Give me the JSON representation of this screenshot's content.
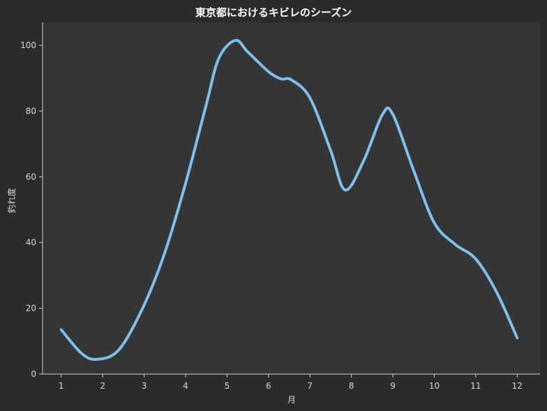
{
  "chart_data": {
    "type": "line",
    "title": "東京都におけるキビレのシーズン",
    "xlabel": "月",
    "ylabel": "釣れ度",
    "x": [
      1,
      2,
      3,
      4,
      5,
      6,
      7,
      8,
      9,
      10,
      11,
      12
    ],
    "x_tick_labels": [
      "1",
      "2",
      "3",
      "4",
      "5",
      "6",
      "7",
      "8",
      "9",
      "10",
      "11",
      "12"
    ],
    "y_ticks": [
      0,
      20,
      40,
      60,
      80,
      100
    ],
    "y_tick_labels": [
      "0",
      "20",
      "40",
      "60",
      "80",
      "100"
    ],
    "xlim": [
      0.55,
      12.55
    ],
    "ylim": [
      0,
      107
    ],
    "series": [
      {
        "color": "#7cc0ee",
        "values": [
          13.5,
          4.5,
          21,
          58,
          100,
          92,
          84,
          56,
          80,
          46,
          37,
          11
        ],
        "curve_points": [
          [
            1.0,
            13.5
          ],
          [
            1.5,
            6.2
          ],
          [
            1.87,
            4.5
          ],
          [
            2.4,
            7.5
          ],
          [
            3.0,
            21
          ],
          [
            3.5,
            37
          ],
          [
            4.0,
            58
          ],
          [
            4.5,
            82
          ],
          [
            4.8,
            96
          ],
          [
            5.2,
            101.5
          ],
          [
            5.5,
            98
          ],
          [
            6.0,
            92
          ],
          [
            6.3,
            89.8
          ],
          [
            6.55,
            89.5
          ],
          [
            7.0,
            84
          ],
          [
            7.5,
            68
          ],
          [
            7.85,
            56
          ],
          [
            8.3,
            65
          ],
          [
            8.75,
            79
          ],
          [
            9.0,
            79
          ],
          [
            9.5,
            62
          ],
          [
            10.0,
            46
          ],
          [
            10.5,
            39.5
          ],
          [
            11.0,
            35
          ],
          [
            11.5,
            25
          ],
          [
            12.0,
            11
          ]
        ]
      }
    ],
    "grid": false,
    "background_color": "#2b2b2b",
    "plot_background_color": "#353535"
  }
}
